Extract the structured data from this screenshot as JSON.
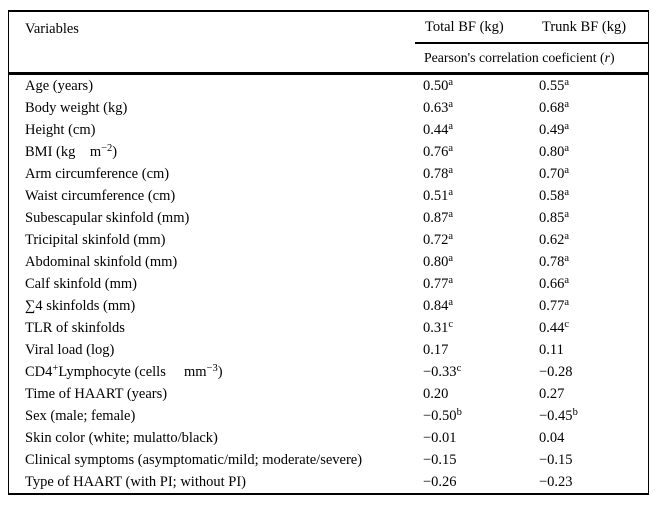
{
  "meta": {
    "background": "#ffffff",
    "text_color": "#000000",
    "rule_color": "#000000"
  },
  "header": {
    "variables": "Variables",
    "total_bf": "Total BF (kg)",
    "trunk_bf": "Trunk BF (kg)",
    "subheader_prefix": "Pearson's correlation coeficient (",
    "subheader_stat": "r",
    "subheader_suffix": ")"
  },
  "rows": [
    {
      "label": [
        {
          "t": "Age (years)"
        }
      ],
      "total": {
        "v": "0.50",
        "s": "a"
      },
      "trunk": {
        "v": "0.55",
        "s": "a"
      }
    },
    {
      "label": [
        {
          "t": "Body weight (kg)"
        }
      ],
      "total": {
        "v": "0.63",
        "s": "a"
      },
      "trunk": {
        "v": "0.68",
        "s": "a"
      }
    },
    {
      "label": [
        {
          "t": "Height (cm)"
        }
      ],
      "total": {
        "v": "0.44",
        "s": "a"
      },
      "trunk": {
        "v": "0.49",
        "s": "a"
      }
    },
    {
      "label": [
        {
          "t": "BMI (kg    m"
        },
        {
          "s": "−2"
        },
        {
          "t": ")"
        }
      ],
      "total": {
        "v": "0.76",
        "s": "a"
      },
      "trunk": {
        "v": "0.80",
        "s": "a"
      }
    },
    {
      "label": [
        {
          "t": "Arm circumference (cm)"
        }
      ],
      "total": {
        "v": "0.78",
        "s": "a"
      },
      "trunk": {
        "v": "0.70",
        "s": "a"
      }
    },
    {
      "label": [
        {
          "t": "Waist circumference (cm)"
        }
      ],
      "total": {
        "v": "0.51",
        "s": "a"
      },
      "trunk": {
        "v": "0.58",
        "s": "a"
      }
    },
    {
      "label": [
        {
          "t": "Subescapular skinfold (mm)"
        }
      ],
      "total": {
        "v": "0.87",
        "s": "a"
      },
      "trunk": {
        "v": "0.85",
        "s": "a"
      }
    },
    {
      "label": [
        {
          "t": "Tricipital skinfold (mm)"
        }
      ],
      "total": {
        "v": "0.72",
        "s": "a"
      },
      "trunk": {
        "v": "0.62",
        "s": "a"
      }
    },
    {
      "label": [
        {
          "t": "Abdominal skinfold (mm)"
        }
      ],
      "total": {
        "v": "0.80",
        "s": "a"
      },
      "trunk": {
        "v": "0.78",
        "s": "a"
      }
    },
    {
      "label": [
        {
          "t": "Calf skinfold (mm)"
        }
      ],
      "total": {
        "v": "0.77",
        "s": "a"
      },
      "trunk": {
        "v": "0.66",
        "s": "a"
      }
    },
    {
      "label": [
        {
          "t": "∑4 skinfolds (mm)"
        }
      ],
      "total": {
        "v": "0.84",
        "s": "a"
      },
      "trunk": {
        "v": "0.77",
        "s": "a"
      }
    },
    {
      "label": [
        {
          "t": "TLR of skinfolds"
        }
      ],
      "total": {
        "v": "0.31",
        "s": "c"
      },
      "trunk": {
        "v": "0.44",
        "s": "c"
      }
    },
    {
      "label": [
        {
          "t": "Viral load (log)"
        }
      ],
      "total": {
        "v": "0.17",
        "s": ""
      },
      "trunk": {
        "v": "0.11",
        "s": ""
      }
    },
    {
      "label": [
        {
          "t": "CD4"
        },
        {
          "s": "+"
        },
        {
          "t": "Lymphocyte (cells     mm"
        },
        {
          "s": "−3"
        },
        {
          "t": ")"
        }
      ],
      "total": {
        "v": "−0.33",
        "s": "c"
      },
      "trunk": {
        "v": "−0.28",
        "s": ""
      }
    },
    {
      "label": [
        {
          "t": "Time of HAART (years)"
        }
      ],
      "total": {
        "v": "0.20",
        "s": ""
      },
      "trunk": {
        "v": "0.27",
        "s": ""
      }
    },
    {
      "label": [
        {
          "t": "Sex (male; female)"
        }
      ],
      "total": {
        "v": "−0.50",
        "s": "b"
      },
      "trunk": {
        "v": "−0.45",
        "s": "b"
      }
    },
    {
      "label": [
        {
          "t": "Skin color (white; mulatto/black)"
        }
      ],
      "total": {
        "v": "−0.01",
        "s": ""
      },
      "trunk": {
        "v": "0.04",
        "s": ""
      }
    },
    {
      "label": [
        {
          "t": "Clinical symptoms (asymptomatic/mild; moderate/severe)"
        }
      ],
      "total": {
        "v": "−0.15",
        "s": ""
      },
      "trunk": {
        "v": "−0.15",
        "s": ""
      }
    },
    {
      "label": [
        {
          "t": "Type of HAART (with PI; without PI)"
        }
      ],
      "total": {
        "v": "−0.26",
        "s": ""
      },
      "trunk": {
        "v": "−0.23",
        "s": ""
      }
    }
  ]
}
